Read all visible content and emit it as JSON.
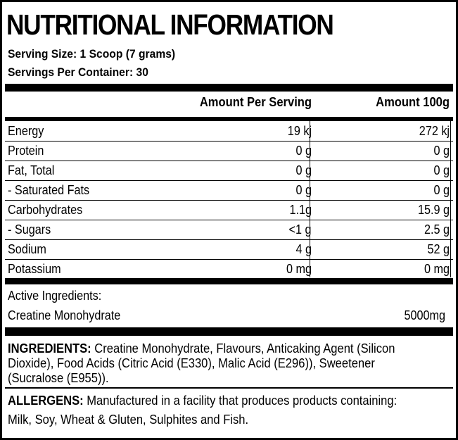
{
  "title": "NUTRITIONAL INFORMATION",
  "serving_size": "Serving Size: 1 Scoop (7 grams)",
  "servings_per_container": "Servings Per Container: 30",
  "table": {
    "headers": {
      "per_serving": "Amount Per Serving",
      "per_100g": "Amount 100g"
    },
    "rows": [
      {
        "name": "Energy",
        "per_serving": "19 kj",
        "per_100g": "272 kj"
      },
      {
        "name": "Protein",
        "per_serving": "0 g",
        "per_100g": "0 g"
      },
      {
        "name": "Fat, Total",
        "per_serving": "0 g",
        "per_100g": "0 g"
      },
      {
        "name": " - Saturated Fats",
        "per_serving": "0 g",
        "per_100g": "0 g"
      },
      {
        "name": "Carbohydrates",
        "per_serving": "1.1g",
        "per_100g": "15.9 g"
      },
      {
        "name": " - Sugars",
        "per_serving": "<1 g",
        "per_100g": "2.5 g"
      },
      {
        "name": "Sodium",
        "per_serving": "4 g",
        "per_100g": "52 g"
      },
      {
        "name": "Potassium",
        "per_serving": "0 mg",
        "per_100g": "0 mg"
      }
    ]
  },
  "active": {
    "heading": "Active Ingredients:",
    "name": "Creatine Monohydrate",
    "amount": "5000mg"
  },
  "ingredients": {
    "label": "INGREDIENTS:",
    "line1": " Creatine Monohydrate, Flavours, Anticaking Agent (Silicon",
    "line2": "Dioxide), Food Acids (Citric Acid (E330), Malic Acid (E296)), Sweetener",
    "line3": "(Sucralose (E955))."
  },
  "allergens": {
    "label": "ALLERGENS:",
    "line1": " Manufactured in a facility that produces products containing:",
    "line2": "Milk, Soy, Wheat & Gluten, Sulphites and Fish."
  }
}
